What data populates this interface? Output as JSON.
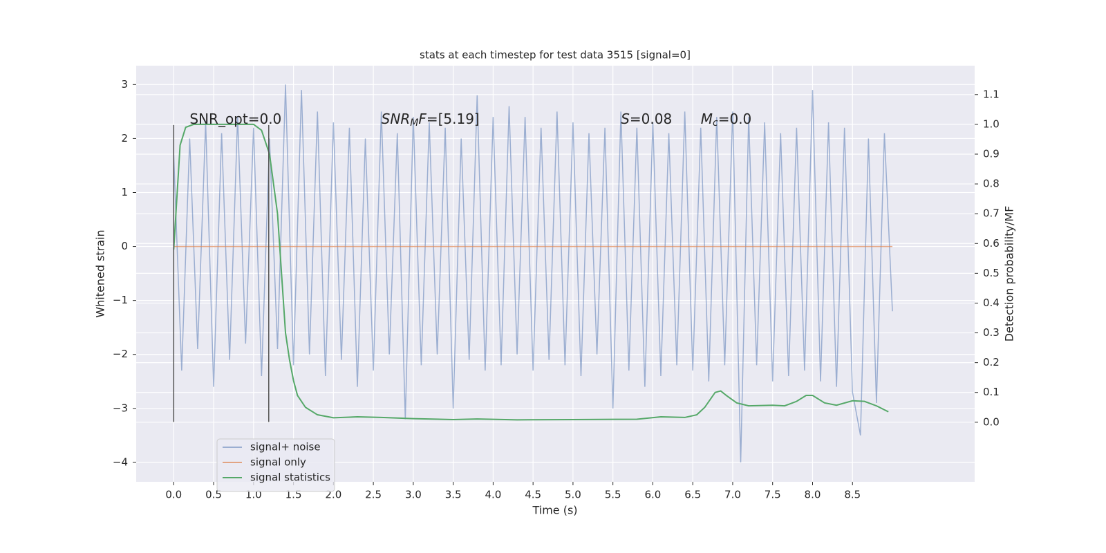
{
  "chart_data": {
    "type": "line",
    "title": "stats at each timestep for test data 3515 [signal=0]",
    "xlabel": "Time (s)",
    "ylabel": "Whitened strain",
    "y2label": "Detection probability/MF",
    "xlim": [
      -0.47,
      10.03
    ],
    "ylim": [
      -4.36,
      3.35
    ],
    "y2lim": [
      -0.2,
      1.197
    ],
    "xticks": [
      {
        "value": 0,
        "label": "0.0"
      },
      0.5,
      {
        "value": 1,
        "label": "1.0"
      },
      1.5,
      {
        "value": 2,
        "label": "2.0"
      },
      2.5,
      {
        "value": 3,
        "label": "3.0"
      },
      3.5,
      {
        "value": 4,
        "label": "4.0"
      },
      4.5,
      {
        "value": 5,
        "label": "5.0"
      },
      5.5,
      {
        "value": 6,
        "label": "6.0"
      },
      6.5,
      {
        "value": 7,
        "label": "7.0"
      },
      7.5,
      {
        "value": 8,
        "label": "8.0"
      },
      8.5
    ],
    "yticks": [
      {
        "value": -4,
        "label": "−4"
      },
      {
        "value": -3,
        "label": "−3"
      },
      {
        "value": -2,
        "label": "−2"
      },
      {
        "value": -1,
        "label": "−1"
      },
      0,
      1,
      2,
      3
    ],
    "y2ticks": [
      {
        "value": 0,
        "label": "0.0"
      },
      0.1,
      0.2,
      0.3,
      0.4,
      0.5,
      0.6,
      0.7,
      0.8,
      0.9,
      {
        "value": 1,
        "label": "1.0"
      },
      1.1
    ],
    "grid": true,
    "legend": "lower left",
    "series": [
      {
        "name": "signal+ noise",
        "color": "#4c72b0",
        "opacity": 0.5,
        "x": [
          0,
          0.1,
          0.2,
          0.3,
          0.4,
          0.5,
          0.6,
          0.7,
          0.8,
          0.9,
          1,
          1.1,
          1.2,
          1.3,
          1.4,
          1.5,
          1.6,
          1.7,
          1.8,
          1.9,
          2,
          2.1,
          2.2,
          2.3,
          2.4,
          2.5,
          2.6,
          2.7,
          2.8,
          2.9,
          3,
          3.1,
          3.2,
          3.3,
          3.4,
          3.5,
          3.6,
          3.7,
          3.8,
          3.9,
          4,
          4.1,
          4.2,
          4.3,
          4.4,
          4.5,
          4.6,
          4.7,
          4.8,
          4.9,
          5,
          5.1,
          5.2,
          5.3,
          5.4,
          5.5,
          5.6,
          5.7,
          5.8,
          5.9,
          6,
          6.1,
          6.2,
          6.3,
          6.4,
          6.5,
          6.6,
          6.7,
          6.8,
          6.9,
          7,
          7.1,
          7.2,
          7.3,
          7.4,
          7.5,
          7.6,
          7.7,
          7.8,
          7.9,
          8,
          8.1,
          8.2,
          8.3,
          8.4,
          8.5,
          8.6,
          8.7,
          8.8,
          8.9,
          9
        ],
        "values": [
          1.7,
          -2.3,
          2.0,
          -1.9,
          2.3,
          -2.6,
          2.1,
          -2.1,
          2.4,
          -1.8,
          2.2,
          -2.4,
          2.0,
          -1.9,
          3.0,
          -2.2,
          2.9,
          -2.0,
          2.5,
          -2.4,
          2.3,
          -2.1,
          2.2,
          -2.6,
          2.0,
          -2.3,
          2.5,
          -2.0,
          2.1,
          -3.2,
          2.4,
          -2.2,
          2.3,
          -2.0,
          2.2,
          -3.0,
          2.0,
          -2.1,
          2.8,
          -2.3,
          2.4,
          -2.2,
          2.6,
          -2.0,
          2.4,
          -2.3,
          2.2,
          -2.1,
          2.5,
          -2.2,
          2.3,
          -2.4,
          2.1,
          -2.0,
          2.2,
          -3.0,
          2.5,
          -2.3,
          2.2,
          -2.6,
          2.3,
          -2.4,
          2.1,
          -2.2,
          2.5,
          -2.3,
          2.2,
          -2.5,
          2.4,
          -2.2,
          2.5,
          -4.0,
          2.4,
          -2.2,
          2.3,
          -2.5,
          2.1,
          -2.4,
          2.2,
          -2.3,
          2.9,
          -2.5,
          2.3,
          -2.6,
          2.2,
          -2.7,
          -3.5,
          2.0,
          -2.9,
          2.1,
          -1.2
        ]
      },
      {
        "name": "signal only",
        "color": "#dd8452",
        "opacity": 0.7,
        "x": [
          0,
          9
        ],
        "values": [
          0,
          0
        ]
      },
      {
        "name": "signal statistics",
        "color": "#55a868",
        "opacity": 1,
        "axis": "y2",
        "x": [
          0,
          0.08,
          0.15,
          0.25,
          0.5,
          0.75,
          1.0,
          1.1,
          1.2,
          1.3,
          1.4,
          1.45,
          1.5,
          1.55,
          1.65,
          1.8,
          2.0,
          2.3,
          2.6,
          3.0,
          3.5,
          3.8,
          4.3,
          5.0,
          5.8,
          6.1,
          6.4,
          6.55,
          6.65,
          6.78,
          6.85,
          6.92,
          7.05,
          7.2,
          7.5,
          7.65,
          7.8,
          7.92,
          8.0,
          8.15,
          8.3,
          8.5,
          8.65,
          8.8,
          8.95
        ],
        "values": [
          0.58,
          0.93,
          0.99,
          1.0,
          1.0,
          1.0,
          1.0,
          0.98,
          0.9,
          0.7,
          0.3,
          0.21,
          0.14,
          0.09,
          0.05,
          0.025,
          0.015,
          0.018,
          0.016,
          0.012,
          0.009,
          0.011,
          0.008,
          0.009,
          0.01,
          0.018,
          0.016,
          0.025,
          0.05,
          0.1,
          0.105,
          0.09,
          0.065,
          0.055,
          0.057,
          0.055,
          0.07,
          0.09,
          0.09,
          0.065,
          0.057,
          0.072,
          0.07,
          0.055,
          0.035
        ]
      }
    ],
    "vlines": [
      {
        "x": 0,
        "ymin": -3.25,
        "ymax": 2.25,
        "color": "#555555"
      },
      {
        "x": 1.19,
        "ymin": -3.25,
        "ymax": 2.25,
        "color": "#555555"
      }
    ],
    "annotations": [
      {
        "x": 0.2,
        "y": 2.35,
        "parts": [
          {
            "text": "SNR_opt=0.0"
          }
        ]
      },
      {
        "x": 2.6,
        "y": 2.35,
        "parts": [
          {
            "text": "SNR",
            "italic": true
          },
          {
            "text": "M",
            "italic": true,
            "sub": true
          },
          {
            "text": "F",
            "italic": true
          },
          {
            "text": "=[5.19]"
          }
        ]
      },
      {
        "x": 5.6,
        "y": 2.35,
        "parts": [
          {
            "text": "S",
            "italic": true
          },
          {
            "text": "=0.08"
          }
        ]
      },
      {
        "x": 6.6,
        "y": 2.35,
        "parts": [
          {
            "text": "M",
            "italic": true
          },
          {
            "text": "c",
            "italic": true,
            "sub": true
          },
          {
            "text": "=0.0"
          }
        ]
      }
    ]
  }
}
